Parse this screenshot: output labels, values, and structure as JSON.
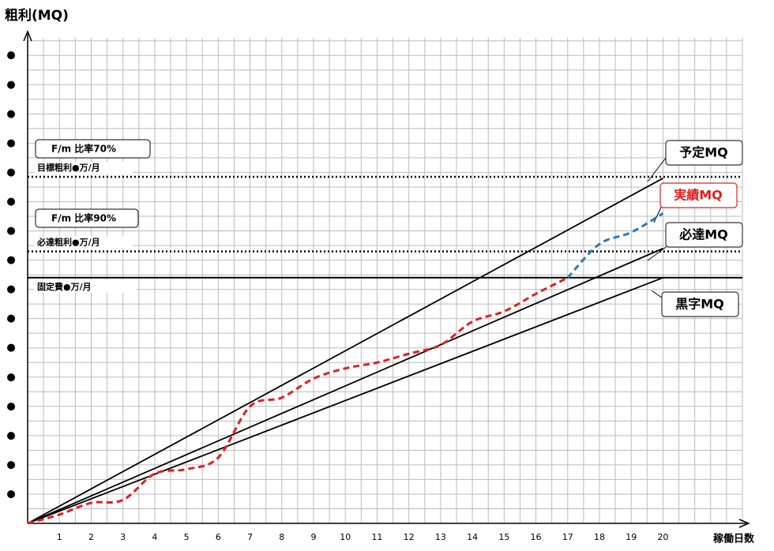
{
  "chart_data": {
    "type": "line",
    "y_label": "粗利(MQ)",
    "x_label": "稼働日数",
    "xlim": [
      0,
      22.5
    ],
    "ylim": [
      0,
      16.6
    ],
    "xticks": [
      1,
      2,
      3,
      4,
      5,
      6,
      7,
      8,
      9,
      10,
      11,
      12,
      13,
      14,
      15,
      16,
      17,
      18,
      19,
      20
    ],
    "yticks": [
      {
        "value": 1,
        "label": "●"
      },
      {
        "value": 2,
        "label": "●"
      },
      {
        "value": 3,
        "label": "●"
      },
      {
        "value": 4,
        "label": "●"
      },
      {
        "value": 5,
        "label": "●"
      },
      {
        "value": 6,
        "label": "●"
      },
      {
        "value": 7,
        "label": "●"
      },
      {
        "value": 8,
        "label": "●"
      },
      {
        "value": 9,
        "label": "●"
      },
      {
        "value": 10,
        "label": "●"
      },
      {
        "value": 11,
        "label": "●"
      },
      {
        "value": 12,
        "label": "●"
      },
      {
        "value": 13,
        "label": "●"
      },
      {
        "value": 14,
        "label": "●"
      },
      {
        "value": 15,
        "label": "●"
      },
      {
        "value": 16,
        "label": "●"
      }
    ],
    "grid": true,
    "series": [
      {
        "name": "予定MQ",
        "color": "#000000",
        "style": "solid",
        "x": [
          0,
          20
        ],
        "values": [
          0,
          11.8
        ]
      },
      {
        "name": "必達MQ",
        "color": "#000000",
        "style": "solid",
        "x": [
          0,
          20
        ],
        "values": [
          0,
          9.4
        ]
      },
      {
        "name": "黒字MQ",
        "color": "#000000",
        "style": "solid",
        "x": [
          0,
          20
        ],
        "values": [
          0,
          8.4
        ]
      },
      {
        "name": "実績MQ",
        "color": "#e02020",
        "style": "dashed",
        "x": [
          0,
          1,
          2,
          3,
          4,
          5,
          6,
          7,
          8,
          9,
          10,
          11,
          12,
          13,
          14,
          15,
          16,
          17
        ],
        "values": [
          0,
          0.3,
          0.7,
          0.8,
          1.7,
          1.85,
          2.25,
          4.0,
          4.3,
          4.95,
          5.3,
          5.5,
          5.8,
          6.1,
          6.9,
          7.25,
          7.85,
          8.4
        ]
      },
      {
        "color": "#2a78c0",
        "style": "dashed",
        "x": [
          17,
          18,
          19,
          20
        ],
        "values": [
          8.4,
          9.55,
          9.95,
          10.6
        ]
      }
    ],
    "reference_lines": [
      {
        "value": 11.85,
        "style": "dotted",
        "label": "目標粗利●万/月",
        "ratio_label": "F/m 比率70%"
      },
      {
        "value": 9.3,
        "style": "dotted",
        "label": "必達粗利●万/月",
        "ratio_label": "F/m 比率90%"
      },
      {
        "value": 8.4,
        "style": "solid",
        "label": "固定費●万/月"
      }
    ]
  }
}
